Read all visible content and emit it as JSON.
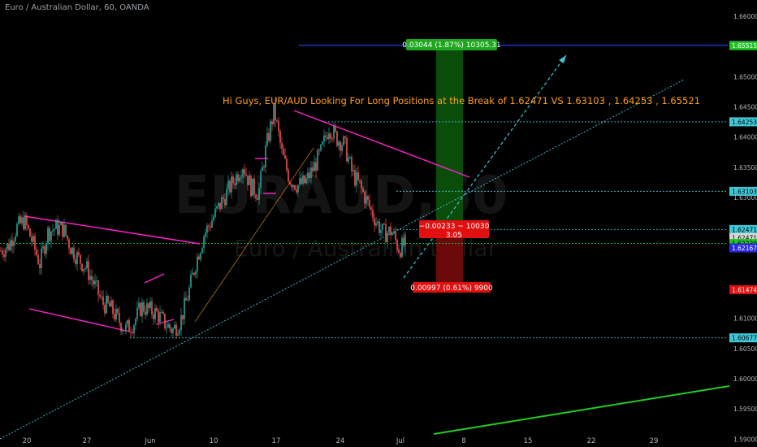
{
  "header": {
    "symbol_line": "Euro / Australian Dollar, 60, OANDA"
  },
  "watermark": {
    "ticker": "EURAUD,60",
    "name": "Euro / Australian Dollar"
  },
  "annotation": {
    "text": "Hi Guys, EUR/AUD Looking For Long Positions at the Break of 1.62471 VS 1.63103 , 1.64253 , 1.65521",
    "color": "#ff9f1a"
  },
  "colors": {
    "background": "#000000",
    "candle_up": "#26a69a",
    "candle_down": "#ef5350",
    "wedge": "#ff22cc",
    "trend": "#3fb8c8",
    "target": "#0a4d0a",
    "stop": "#6b0a0a",
    "green_line": "#22cc22",
    "orange_line": "#ff9f1a"
  },
  "chart_data": {
    "type": "candlestick",
    "title": "",
    "xlabel": "",
    "ylabel": "",
    "x_ticks": [
      "20",
      "27",
      "Jun",
      "10",
      "17",
      "24",
      "Jul",
      "8",
      "15",
      "22",
      "29"
    ],
    "y_ticks": [
      "1.66000",
      "1.65500",
      "1.65000",
      "1.64500",
      "1.64000",
      "1.63500",
      "1.63000",
      "1.62500",
      "1.61500",
      "1.61000",
      "1.60500",
      "1.60000",
      "1.59500",
      "1.59000"
    ],
    "ylim": [
      1.5887,
      1.6627
    ],
    "grid": false,
    "price_points": [
      [
        0,
        1.6212
      ],
      [
        3,
        1.622
      ],
      [
        6,
        1.625
      ],
      [
        9,
        1.6262
      ],
      [
        12,
        1.6228
      ],
      [
        15,
        1.619
      ],
      [
        18,
        1.6242
      ],
      [
        21,
        1.625
      ],
      [
        24,
        1.6248
      ],
      [
        27,
        1.6216
      ],
      [
        30,
        1.6198
      ],
      [
        33,
        1.6182
      ],
      [
        36,
        1.6155
      ],
      [
        39,
        1.6125
      ],
      [
        42,
        1.6118
      ],
      [
        45,
        1.6098
      ],
      [
        48,
        1.6082
      ],
      [
        51,
        1.6092
      ],
      [
        54,
        1.612
      ],
      [
        57,
        1.6114
      ],
      [
        60,
        1.6108
      ],
      [
        63,
        1.6092
      ],
      [
        66,
        1.608
      ],
      [
        69,
        1.6096
      ],
      [
        72,
        1.614
      ],
      [
        75,
        1.6194
      ],
      [
        78,
        1.6238
      ],
      [
        81,
        1.6262
      ],
      [
        84,
        1.6286
      ],
      [
        87,
        1.631
      ],
      [
        90,
        1.6332
      ],
      [
        93,
        1.6355
      ],
      [
        96,
        1.6318
      ],
      [
        99,
        1.6308
      ],
      [
        102,
        1.6385
      ],
      [
        105,
        1.6445
      ],
      [
        108,
        1.6372
      ],
      [
        111,
        1.633
      ],
      [
        114,
        1.632
      ],
      [
        117,
        1.6325
      ],
      [
        120,
        1.6348
      ],
      [
        123,
        1.6375
      ],
      [
        126,
        1.6418
      ],
      [
        129,
        1.6398
      ],
      [
        132,
        1.6388
      ],
      [
        135,
        1.634
      ],
      [
        138,
        1.6318
      ],
      [
        141,
        1.629
      ],
      [
        144,
        1.6262
      ],
      [
        147,
        1.624
      ],
      [
        150,
        1.6245
      ],
      [
        153,
        1.6215
      ],
      [
        156,
        1.6225
      ]
    ],
    "horizontal_levels": [
      {
        "price": 1.65521,
        "label": "1.65521",
        "color": "#2244ff",
        "style": "solid"
      },
      {
        "price": 1.64253,
        "label": "1.64253",
        "color": "#3fb8c8",
        "style": "dotted"
      },
      {
        "price": 1.63103,
        "label": "1.63103",
        "color": "#3fb8c8",
        "style": "dotted"
      },
      {
        "price": 1.62471,
        "label": "1.62471",
        "color": "#3fb8c8",
        "style": "dotted"
      },
      {
        "price": 1.62239,
        "label": "1.62239",
        "color": "#22cc22",
        "style": "dotted"
      },
      {
        "price": 1.60677,
        "label": "1.60677",
        "color": "#3fb8c8",
        "style": "dotted"
      }
    ],
    "price_tags": [
      {
        "price": 1.65521,
        "label": "1.65521",
        "bg": "#2a2ae0",
        "fg": "#ffffff"
      },
      {
        "price": 1.65515,
        "label": "1.65515",
        "bg": "#1fc41f",
        "fg": "#ffffff"
      },
      {
        "price": 1.64253,
        "label": "1.64253",
        "bg": "#3fc8d8",
        "fg": "#000000"
      },
      {
        "price": 1.63103,
        "label": "1.63103",
        "bg": "#3fc8d8",
        "fg": "#000000"
      },
      {
        "price": 1.62471,
        "label": "1.62471",
        "bg": "#3fc8d8",
        "fg": "#000000"
      },
      {
        "price": 1.62471,
        "label": "1.62471",
        "bg": "#d8d8d8",
        "fg": "#000000",
        "offset": 10
      },
      {
        "price": 1.62239,
        "label": "1.62239",
        "bg": "#1fc41f",
        "fg": "#000000"
      },
      {
        "price": 1.62167,
        "label": "1.62167",
        "bg": "#2a2ae0",
        "fg": "#ffffff"
      },
      {
        "price": 1.61474,
        "label": "1.61474",
        "bg": "#e01010",
        "fg": "#ffffff"
      },
      {
        "price": 1.60677,
        "label": "1.60677",
        "bg": "#3fc8d8",
        "fg": "#000000"
      }
    ],
    "position": {
      "entry": 1.62471,
      "target": 1.65515,
      "stop": 1.61474,
      "target_label": "0.03044 (1.87%) 10305.31",
      "stop_label": "0.00997 (0.61%) 9900",
      "center_label_1": "−0.00233 ~ 10030",
      "center_label_2": "3.05"
    }
  }
}
